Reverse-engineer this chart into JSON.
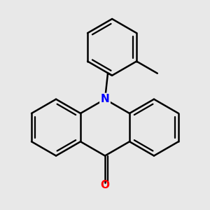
{
  "background_color": "#e8e8e8",
  "bond_color": "#000000",
  "nitrogen_color": "#0000ff",
  "oxygen_color": "#ff0000",
  "line_width": 1.8,
  "figsize": [
    3.0,
    3.0
  ],
  "dpi": 100
}
